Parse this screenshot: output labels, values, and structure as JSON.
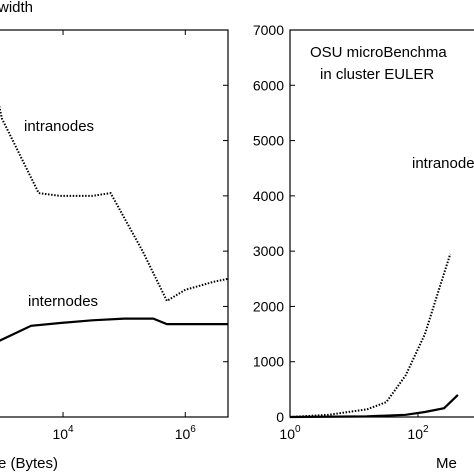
{
  "chart_data": [
    {
      "type": "line",
      "title": "width",
      "xlabel": "e (Bytes)",
      "ylabel": "",
      "xscale": "log",
      "xlim": [
        800,
        5000000
      ],
      "ylim": [
        0,
        7000
      ],
      "x_ticks": [
        {
          "value": 10000,
          "base": "10",
          "exp": "4"
        },
        {
          "value": 1000000,
          "base": "10",
          "exp": "6"
        }
      ],
      "grid": false,
      "series": [
        {
          "name": "intranodes",
          "style": "dotted",
          "points": [
            [
              800,
              5900
            ],
            [
              1000,
              5400
            ],
            [
              4000,
              4050
            ],
            [
              9000,
              4000
            ],
            [
              30000,
              4000
            ],
            [
              60000,
              4050
            ],
            [
              200000,
              3000
            ],
            [
              500000,
              2100
            ],
            [
              1000000,
              2300
            ],
            [
              3000000,
              2450
            ],
            [
              5000000,
              2500
            ]
          ]
        },
        {
          "name": "internodes",
          "style": "solid",
          "points": [
            [
              800,
              1350
            ],
            [
              3000,
              1650
            ],
            [
              9000,
              1700
            ],
            [
              30000,
              1750
            ],
            [
              100000,
              1780
            ],
            [
              300000,
              1780
            ],
            [
              500000,
              1680
            ],
            [
              1000000,
              1680
            ],
            [
              5000000,
              1680
            ]
          ]
        }
      ]
    },
    {
      "type": "line",
      "title": "OSU microBenchma in cluster EULER",
      "xlabel": "Me",
      "ylabel": "",
      "xscale": "log",
      "xlim": [
        1,
        1000
      ],
      "ylim": [
        0,
        7000
      ],
      "y_ticks": [
        0,
        1000,
        2000,
        3000,
        4000,
        5000,
        6000,
        7000
      ],
      "x_ticks": [
        {
          "value": 1,
          "base": "10",
          "exp": "0"
        },
        {
          "value": 100,
          "base": "10",
          "exp": "2"
        }
      ],
      "grid": false,
      "series": [
        {
          "name": "intranodes",
          "style": "dotted",
          "points": [
            [
              1,
              0
            ],
            [
              4,
              40
            ],
            [
              16,
              140
            ],
            [
              32,
              270
            ],
            [
              64,
              750
            ],
            [
              128,
              1500
            ],
            [
              256,
              2600
            ],
            [
              320,
              2950
            ]
          ]
        },
        {
          "name": "",
          "style": "solid",
          "points": [
            [
              1,
              0
            ],
            [
              16,
              10
            ],
            [
              64,
              40
            ],
            [
              128,
              90
            ],
            [
              256,
              160
            ],
            [
              420,
              400
            ]
          ]
        }
      ]
    }
  ]
}
